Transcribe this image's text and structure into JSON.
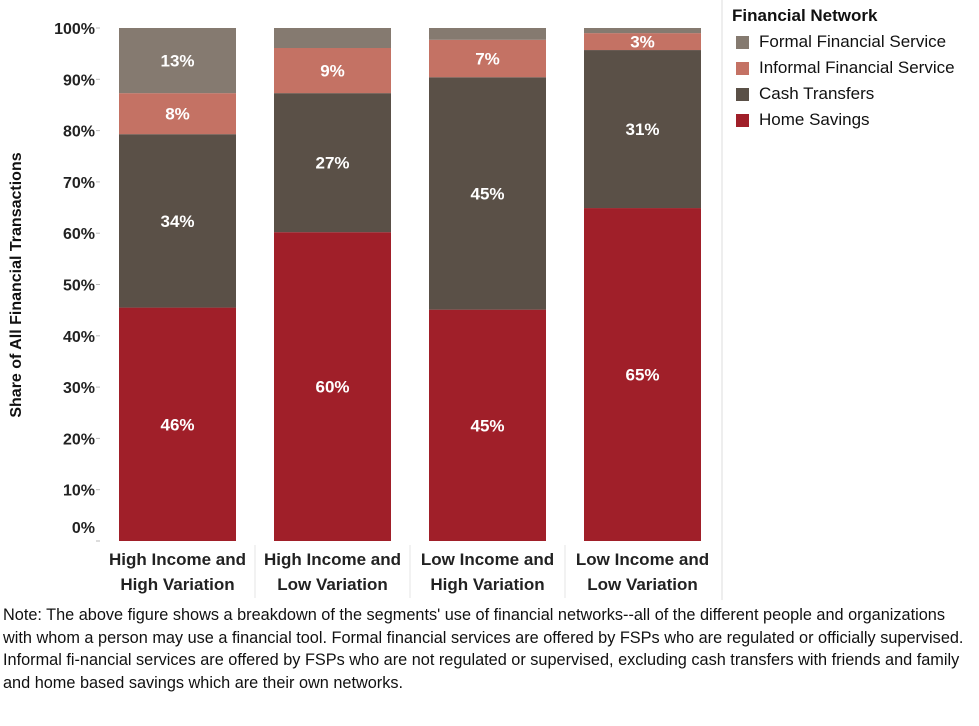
{
  "chart_data": {
    "type": "bar",
    "stacked": true,
    "title": "",
    "xlabel": "",
    "ylabel": "Share of All Financial Transactions",
    "ylim": [
      0,
      100
    ],
    "yticks": [
      "0%",
      "10%",
      "20%",
      "30%",
      "40%",
      "50%",
      "60%",
      "70%",
      "80%",
      "90%",
      "100%"
    ],
    "categories": [
      [
        "High Income and",
        "High Variation"
      ],
      [
        "High Income and",
        "Low Variation"
      ],
      [
        "Low Income and",
        "High Variation"
      ],
      [
        "Low Income and",
        "Low Variation"
      ]
    ],
    "series": [
      {
        "name": "Home Savings",
        "color": "#a01f29",
        "values": [
          45.5,
          60.2,
          45.1,
          64.9
        ],
        "labels": [
          "46%",
          "60%",
          "45%",
          "65%"
        ]
      },
      {
        "name": "Cash Transfers",
        "color": "#5a5047",
        "values": [
          33.8,
          27.1,
          45.3,
          30.8
        ],
        "labels": [
          "34%",
          "27%",
          "45%",
          "31%"
        ]
      },
      {
        "name": "Informal Financial Service",
        "color": "#c47264",
        "values": [
          8.0,
          8.8,
          7.3,
          3.3
        ],
        "labels": [
          "8%",
          "9%",
          "7%",
          "3%"
        ]
      },
      {
        "name": "Formal Financial Service",
        "color": "#857a70",
        "values": [
          12.7,
          3.9,
          2.3,
          1.0
        ],
        "labels": [
          "13%",
          "",
          "",
          ""
        ]
      }
    ],
    "legend": {
      "title": "Financial Network",
      "placement": "top-right",
      "order": [
        "Formal Financial Service",
        "Informal Financial Service",
        "Cash Transfers",
        "Home Savings"
      ]
    },
    "grid": false
  },
  "note": "Note: The above figure shows a breakdown of the segments' use of financial networks--all of the different people and organizations with whom a person may use a financial tool. Formal financial services are offered by FSPs who are regulated or officially supervised. Informal fi-nancial services are offered by FSPs who are not regulated or supervised, excluding cash transfers with friends and family and home based savings which are their own networks."
}
